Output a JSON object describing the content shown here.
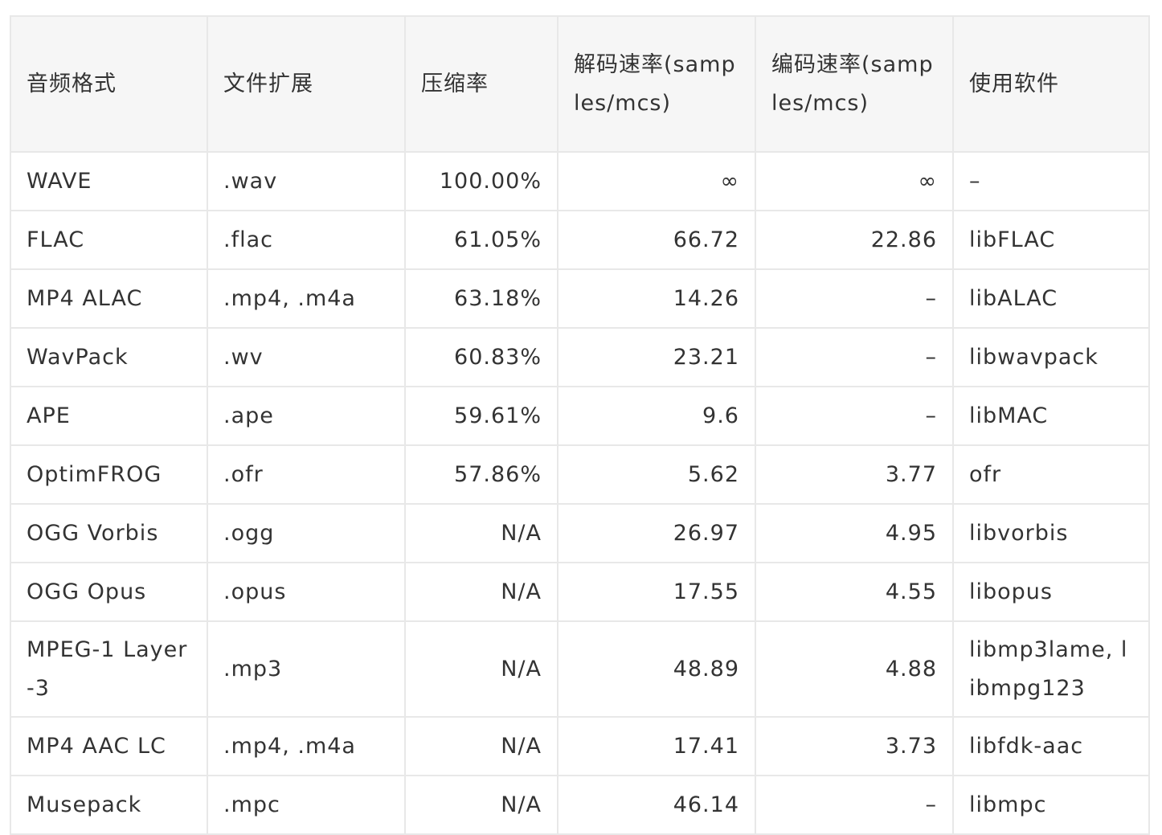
{
  "table": {
    "headers": [
      "音频格式",
      "文件扩展",
      "压缩率",
      "解码速率(samples/mcs)",
      "编码速率(samples/mcs)",
      "使用软件"
    ],
    "rows": [
      [
        "WAVE",
        ".wav",
        "100.00%",
        "∞",
        "∞",
        "–"
      ],
      [
        "FLAC",
        ".flac",
        "61.05%",
        "66.72",
        "22.86",
        "libFLAC"
      ],
      [
        "MP4 ALAC",
        ".mp4, .m4a",
        "63.18%",
        "14.26",
        "–",
        "libALAC"
      ],
      [
        "WavPack",
        ".wv",
        "60.83%",
        "23.21",
        "–",
        "libwavpack"
      ],
      [
        "APE",
        ".ape",
        "59.61%",
        "9.6",
        "–",
        "libMAC"
      ],
      [
        "OptimFROG",
        ".ofr",
        "57.86%",
        "5.62",
        "3.77",
        "ofr"
      ],
      [
        "OGG Vorbis",
        ".ogg",
        "N/A",
        "26.97",
        "4.95",
        "libvorbis"
      ],
      [
        "OGG Opus",
        ".opus",
        "N/A",
        "17.55",
        "4.55",
        "libopus"
      ],
      [
        "MPEG-1 Layer-3",
        ".mp3",
        "N/A",
        "48.89",
        "4.88",
        "libmp3lame, libmpg123"
      ],
      [
        "MP4 AAC LC",
        ".mp4, .m4a",
        "N/A",
        "17.41",
        "3.73",
        "libfdk-aac"
      ],
      [
        "Musepack",
        ".mpc",
        "N/A",
        "46.14",
        "–",
        "libmpc"
      ]
    ]
  }
}
